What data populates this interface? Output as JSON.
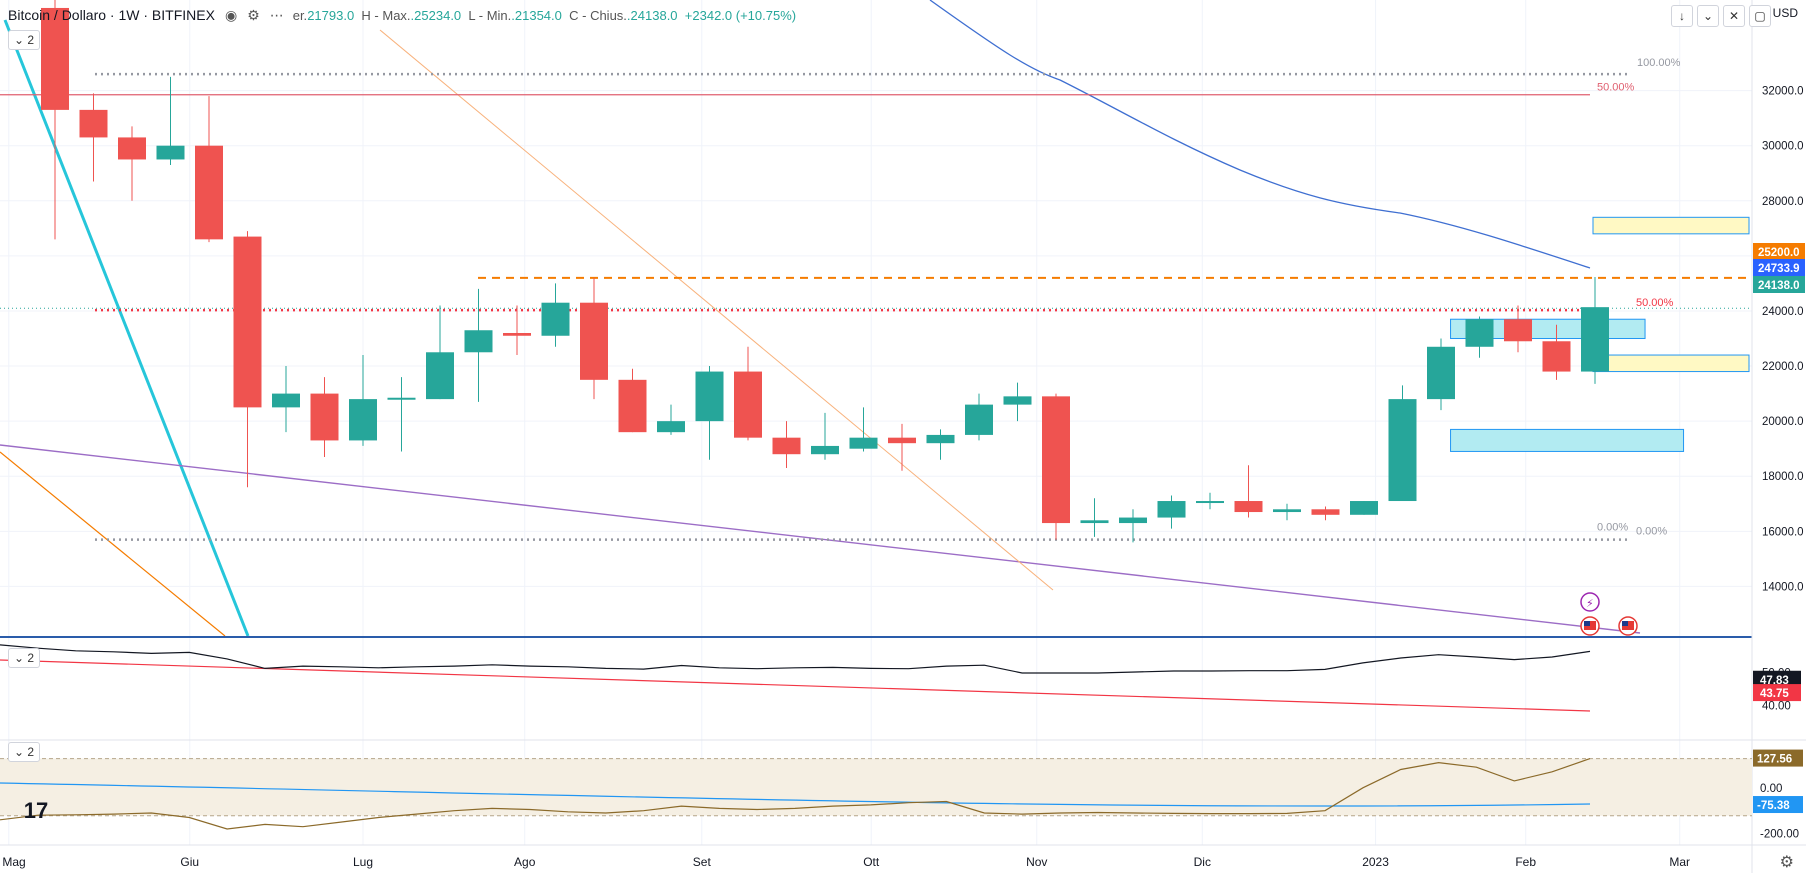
{
  "header": {
    "symbol_title": "Bitcoin / Dollaro · 1W · BITFINEX",
    "eye_icon": "eye-icon",
    "ohlc": [
      {
        "k": "er.",
        "v": "21793.0"
      },
      {
        "k": "H - Max.",
        "v": "25234.0"
      },
      {
        "k": "L - Min.",
        "v": "21354.0"
      },
      {
        "k": "C - Chius.",
        "v": "24138.0"
      }
    ],
    "change": "+2342.0 (+10.75%)"
  },
  "currency": "USD",
  "pane_controls": {
    "main": "2",
    "osc1": "2",
    "osc2": "2"
  },
  "toolbar_icons": [
    "arrow-down-icon",
    "pin-icon",
    "collapse-icon",
    "maximize-icon"
  ],
  "colors": {
    "up": "#26a69a",
    "down": "#ef5350",
    "grid": "#f0f3fa"
  },
  "chart_data": {
    "type": "candlestick",
    "price_axis": {
      "range": [
        12200,
        34200
      ],
      "ticks": [
        "14000.0",
        "16000.0",
        "18000.0",
        "20000.0",
        "22000.0",
        "24000.0",
        "26000.0",
        "28000.0",
        "30000.0",
        "32000.0"
      ],
      "tick_values": [
        14000,
        16000,
        18000,
        20000,
        22000,
        24000,
        26000,
        28000,
        30000,
        32000
      ]
    },
    "time_axis": {
      "labels": [
        "Mag",
        "Giu",
        "Lug",
        "Ago",
        "Set",
        "Ott",
        "Nov",
        "Dic",
        "2023",
        "Feb",
        "Mar"
      ],
      "label_week_index": [
        -1.2,
        3.5,
        8.0,
        12.2,
        16.8,
        21.2,
        25.5,
        29.8,
        34.3,
        38.2,
        42.2
      ]
    },
    "candles": [
      {
        "o": 35000,
        "h": 36500,
        "l": 26600,
        "c": 31300
      },
      {
        "o": 31300,
        "h": 31900,
        "l": 28700,
        "c": 30300
      },
      {
        "o": 30300,
        "h": 30700,
        "l": 28000,
        "c": 29500
      },
      {
        "o": 29500,
        "h": 32500,
        "l": 29300,
        "c": 30000
      },
      {
        "o": 30000,
        "h": 31800,
        "l": 26500,
        "c": 26600
      },
      {
        "o": 26700,
        "h": 26900,
        "l": 17600,
        "c": 20500
      },
      {
        "o": 20500,
        "h": 22000,
        "l": 19600,
        "c": 21000
      },
      {
        "o": 21000,
        "h": 21600,
        "l": 18700,
        "c": 19300
      },
      {
        "o": 19300,
        "h": 22400,
        "l": 19100,
        "c": 20800
      },
      {
        "o": 20800,
        "h": 21600,
        "l": 18900,
        "c": 20850
      },
      {
        "o": 20800,
        "h": 24200,
        "l": 20800,
        "c": 22500
      },
      {
        "o": 22500,
        "h": 24800,
        "l": 20700,
        "c": 23300
      },
      {
        "o": 23200,
        "h": 24200,
        "l": 22400,
        "c": 23100
      },
      {
        "o": 23100,
        "h": 25000,
        "l": 22700,
        "c": 24300
      },
      {
        "o": 24300,
        "h": 25200,
        "l": 20800,
        "c": 21500
      },
      {
        "o": 21500,
        "h": 21900,
        "l": 19600,
        "c": 19600
      },
      {
        "o": 19600,
        "h": 20600,
        "l": 19500,
        "c": 20000
      },
      {
        "o": 20000,
        "h": 22000,
        "l": 18600,
        "c": 21800
      },
      {
        "o": 21800,
        "h": 22700,
        "l": 19300,
        "c": 19400
      },
      {
        "o": 19400,
        "h": 20000,
        "l": 18300,
        "c": 18800
      },
      {
        "o": 18800,
        "h": 20300,
        "l": 18600,
        "c": 19100
      },
      {
        "o": 19000,
        "h": 20500,
        "l": 18900,
        "c": 19400
      },
      {
        "o": 19400,
        "h": 19900,
        "l": 18200,
        "c": 19200
      },
      {
        "o": 19200,
        "h": 19700,
        "l": 18600,
        "c": 19500
      },
      {
        "o": 19500,
        "h": 21000,
        "l": 19300,
        "c": 20600
      },
      {
        "o": 20600,
        "h": 21400,
        "l": 20000,
        "c": 20900
      },
      {
        "o": 20900,
        "h": 21000,
        "l": 15700,
        "c": 16300
      },
      {
        "o": 16300,
        "h": 17200,
        "l": 15800,
        "c": 16400
      },
      {
        "o": 16300,
        "h": 16800,
        "l": 15600,
        "c": 16500
      },
      {
        "o": 16500,
        "h": 17300,
        "l": 16100,
        "c": 17100
      },
      {
        "o": 17100,
        "h": 17400,
        "l": 16800,
        "c": 17100
      },
      {
        "o": 17100,
        "h": 18400,
        "l": 16500,
        "c": 16700
      },
      {
        "o": 16700,
        "h": 17000,
        "l": 16400,
        "c": 16800
      },
      {
        "o": 16800,
        "h": 16900,
        "l": 16400,
        "c": 16600
      },
      {
        "o": 16600,
        "h": 17100,
        "l": 16600,
        "c": 17100
      },
      {
        "o": 17100,
        "h": 21300,
        "l": 17100,
        "c": 20800
      },
      {
        "o": 20800,
        "h": 23000,
        "l": 20400,
        "c": 22700
      },
      {
        "o": 22700,
        "h": 23800,
        "l": 22300,
        "c": 23700
      },
      {
        "o": 23700,
        "h": 24200,
        "l": 22500,
        "c": 22900
      },
      {
        "o": 22900,
        "h": 23500,
        "l": 21500,
        "c": 21800
      },
      {
        "o": 21800,
        "h": 25234,
        "l": 21354,
        "c": 24138
      }
    ],
    "horizontal_levels": [
      {
        "price": 25200,
        "style": "dashed",
        "color": "#f57c00",
        "tag": "25200.0"
      },
      {
        "price": 24030,
        "style": "dotted",
        "color": "#f23645",
        "label": "50.00%"
      },
      {
        "price": 31850,
        "style": "solid",
        "color": "#e06070",
        "label": "50.00%"
      },
      {
        "price": 32600,
        "style": "dotted",
        "color": "#9598a1",
        "label": "100.00%"
      },
      {
        "price": 15700,
        "style": "dotted",
        "color": "#9598a1",
        "label": "0.00%"
      },
      {
        "price": 0,
        "label2": "0.00%"
      }
    ],
    "price_tags": [
      {
        "value": "25200.0",
        "color": "#f57c00"
      },
      {
        "value": "24733.9",
        "color": "#2962ff"
      },
      {
        "value": "24138.0",
        "color": "#26a69a"
      }
    ],
    "rect_zones": [
      {
        "w0": 40.0,
        "w1": 44.0,
        "p0": 26800,
        "p1": 27400,
        "fill": "#fff9c4",
        "stroke": "#2196f3"
      },
      {
        "w0": 40.0,
        "w1": 44.0,
        "p0": 21800,
        "p1": 22400,
        "fill": "#fff9c4",
        "stroke": "#2196f3"
      },
      {
        "w0": 36.3,
        "w1": 41.3,
        "p0": 23000,
        "p1": 23700,
        "fill": "#b2ebf2",
        "stroke": "#2196f3"
      },
      {
        "w0": 36.3,
        "w1": 42.3,
        "p0": 18900,
        "p1": 19700,
        "fill": "#b2ebf2",
        "stroke": "#2196f3"
      }
    ],
    "osc1": {
      "range": [
        30,
        60
      ],
      "ticks": [
        "50.00",
        "40.00"
      ],
      "tick_values": [
        50,
        40
      ],
      "tags": [
        {
          "value": "47.83",
          "color": "#131722"
        },
        {
          "value": "43.75",
          "color": "#f23645"
        }
      ],
      "line_black": [
        58.5,
        57.5,
        56.7,
        56.4,
        55.9,
        56.2,
        54.2,
        51.3,
        52.0,
        51.8,
        51.5,
        51.8,
        52.0,
        52.4,
        52.0,
        51.8,
        51.3,
        51.1,
        52.2,
        51.5,
        51.2,
        51.5,
        51.6,
        51.3,
        51.2,
        52.0,
        52.3,
        49.9,
        49.9,
        49.9,
        50.2,
        50.5,
        50.5,
        50.6,
        50.6,
        51.0,
        53.0,
        54.5,
        55.5,
        54.8,
        54.0,
        54.8,
        56.5
      ],
      "line_red": [
        54,
        43.75
      ]
    },
    "osc2": {
      "range": [
        -250,
        200
      ],
      "ticks": [
        "0.00",
        "-200.00"
      ],
      "tick_values": [
        0,
        -200
      ],
      "band": [
        127.56,
        -122
      ],
      "tags": [
        {
          "value": "127.56",
          "color": "#8b6a2a"
        },
        {
          "value": "-75.38",
          "color": "#2196f3"
        }
      ],
      "line_brown": [
        -140,
        -120,
        -118,
        -115,
        -110,
        -130,
        -180,
        -160,
        -170,
        -150,
        -130,
        -115,
        -100,
        -90,
        -95,
        -105,
        -110,
        -100,
        -80,
        -90,
        -95,
        -90,
        -80,
        -75,
        -65,
        -60,
        -110,
        -115,
        -110,
        -108,
        -110,
        -112,
        -113,
        -113,
        -112,
        -100,
        0,
        80,
        110,
        90,
        30,
        70,
        127.56
      ],
      "line_blue": [
        -10,
        -75.38
      ]
    }
  }
}
